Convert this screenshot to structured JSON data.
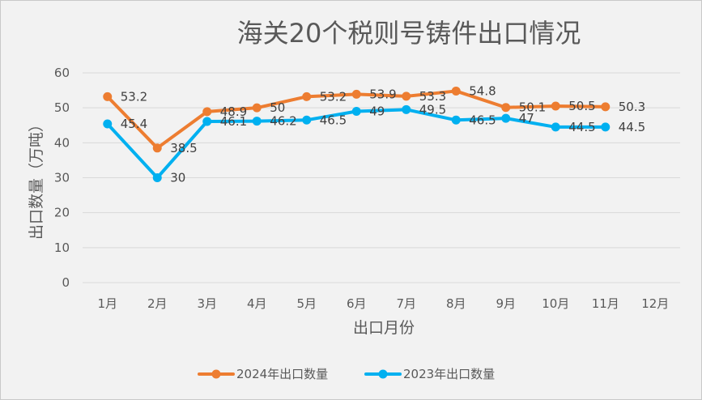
{
  "chart_data": {
    "type": "line",
    "title": "海关20个税则号铸件出口情况",
    "xlabel": "出口月份",
    "ylabel": "出口数量（万吨）",
    "ylim": [
      0,
      60
    ],
    "yticks": [
      "0",
      "10",
      "20",
      "30",
      "40",
      "50",
      "60"
    ],
    "categories": [
      "1月",
      "2月",
      "3月",
      "4月",
      "5月",
      "6月",
      "7月",
      "8月",
      "9月",
      "10月",
      "11月",
      "12月"
    ],
    "grid": "horizontal",
    "legend_position": "bottom",
    "series": [
      {
        "name": "2024年出口数量",
        "color": "#ed7d31",
        "values": [
          53.2,
          38.5,
          48.9,
          50,
          53.2,
          53.9,
          53.3,
          54.8,
          50.1,
          50.5,
          50.3,
          null
        ],
        "labels": [
          "53.2",
          "38.5",
          "48.9",
          "50",
          "53.2",
          "53.9",
          "53.3",
          "54.8",
          "50.1",
          "50.5",
          "50.3",
          ""
        ]
      },
      {
        "name": "2023年出口数量",
        "color": "#00b0f0",
        "values": [
          45.4,
          30,
          46.1,
          46.2,
          46.5,
          49,
          49.5,
          46.5,
          47,
          44.5,
          44.5,
          null
        ],
        "labels": [
          "45.4",
          "30",
          "46.1",
          "46.2",
          "46.5",
          "49",
          "49.5",
          "46.5",
          "47",
          "44.5",
          "44.5",
          ""
        ]
      }
    ]
  }
}
